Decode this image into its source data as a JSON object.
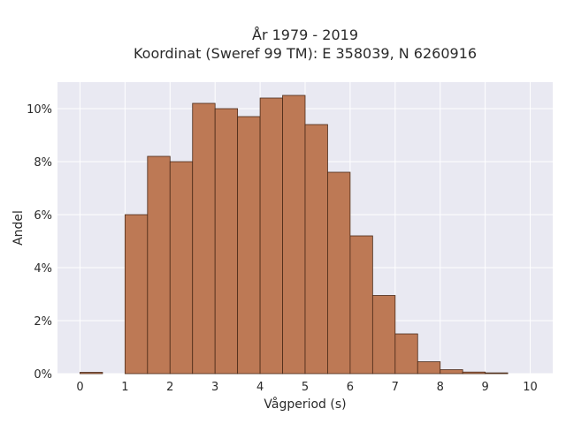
{
  "chart_data": {
    "type": "bar",
    "title_line1": "År 1979 - 2019",
    "title_line2": "Koordinat (Sweref 99 TM): E 358039, N 6260916",
    "xlabel": "Vågperiod (s)",
    "ylabel": "Andel",
    "bin_width": 0.5,
    "x_ticks": [
      0,
      1,
      2,
      3,
      4,
      5,
      6,
      7,
      8,
      9,
      10
    ],
    "y_ticks": [
      0,
      2,
      4,
      6,
      8,
      10
    ],
    "y_tick_labels": [
      "0%",
      "2%",
      "4%",
      "6%",
      "8%",
      "10%"
    ],
    "xlim": [
      -0.5,
      10.5
    ],
    "ylim": [
      0,
      11
    ],
    "grid": true,
    "bins": [
      {
        "x": 0.0,
        "value": 0.05
      },
      {
        "x": 1.0,
        "value": 6.0
      },
      {
        "x": 1.5,
        "value": 8.2
      },
      {
        "x": 2.0,
        "value": 8.0
      },
      {
        "x": 2.5,
        "value": 10.2
      },
      {
        "x": 3.0,
        "value": 10.0
      },
      {
        "x": 3.5,
        "value": 9.7
      },
      {
        "x": 4.0,
        "value": 10.4
      },
      {
        "x": 4.5,
        "value": 10.5
      },
      {
        "x": 5.0,
        "value": 9.4
      },
      {
        "x": 5.5,
        "value": 7.6
      },
      {
        "x": 6.0,
        "value": 5.2
      },
      {
        "x": 6.5,
        "value": 2.95
      },
      {
        "x": 7.0,
        "value": 1.5
      },
      {
        "x": 7.5,
        "value": 0.45
      },
      {
        "x": 8.0,
        "value": 0.15
      },
      {
        "x": 8.5,
        "value": 0.06
      },
      {
        "x": 9.0,
        "value": 0.03
      }
    ],
    "colors": {
      "bar_fill": "#bd7955",
      "bar_edge": "#4a2a18",
      "plot_background": "#e9e9f2",
      "grid": "#ffffff"
    }
  }
}
